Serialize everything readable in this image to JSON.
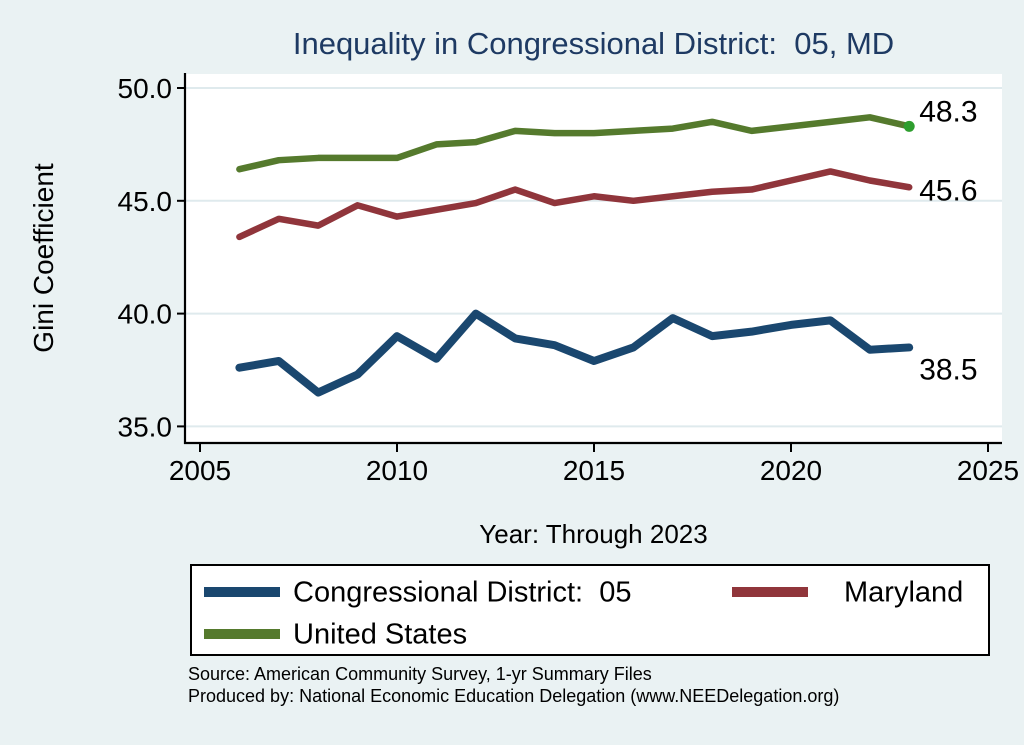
{
  "title": "Inequality in Congressional District:  05, MD",
  "colors": {
    "page_background": "#eaf2f3",
    "plot_background": "#ffffff",
    "gridline": "#dfeaed",
    "axis": "#000000",
    "title_text": "#1e3a63",
    "tick_text": "#000000",
    "navy": "#1a476f",
    "maroon": "#90353b",
    "olive": "#557a2d",
    "end_marker_green": "#2e9e2e"
  },
  "chart_data": {
    "type": "line",
    "title": "Inequality in Congressional District:  05, MD",
    "xlabel": "Year: Through 2023",
    "ylabel": "Gini Coefficient",
    "grid": true,
    "legend_position": "bottom",
    "xlim": [
      2005,
      2025
    ],
    "ylim": [
      34.3,
      50.7
    ],
    "x_ticks": [
      2005,
      2010,
      2015,
      2020,
      2025
    ],
    "y_tick_values": [
      50,
      45,
      40,
      35
    ],
    "y_tick_labels": [
      "50.0",
      "45.0",
      "40.0",
      "35.0"
    ],
    "x": [
      2006,
      2007,
      2008,
      2009,
      2010,
      2011,
      2012,
      2013,
      2014,
      2015,
      2016,
      2017,
      2018,
      2019,
      2020,
      2021,
      2022,
      2023
    ],
    "series": [
      {
        "name": "Congressional District:  05",
        "color": "#1a476f",
        "end_label": "38.5",
        "values": [
          37.6,
          37.9,
          36.5,
          37.3,
          39.0,
          38.0,
          40.0,
          38.9,
          38.6,
          37.9,
          38.5,
          39.8,
          39.0,
          39.2,
          39.5,
          39.7,
          38.4,
          38.5
        ]
      },
      {
        "name": "Maryland",
        "color": "#90353b",
        "end_label": "45.6",
        "values": [
          43.4,
          44.2,
          43.9,
          44.8,
          44.3,
          44.6,
          44.9,
          45.5,
          44.9,
          45.2,
          45.0,
          45.2,
          45.4,
          45.5,
          45.9,
          46.3,
          45.9,
          45.6
        ]
      },
      {
        "name": "United States",
        "color": "#557a2d",
        "end_label": "48.3",
        "end_marker": true,
        "end_marker_color": "#2e9e2e",
        "values": [
          46.4,
          46.8,
          46.9,
          46.9,
          46.9,
          47.5,
          47.6,
          48.1,
          48.0,
          48.0,
          48.1,
          48.2,
          48.5,
          48.1,
          48.3,
          48.5,
          48.7,
          48.3
        ]
      }
    ]
  },
  "source_line1": "Source: American Community Survey, 1-yr Summary Files",
  "source_line2": "Produced by: National Economic Education Delegation (www.NEEDelegation.org)"
}
